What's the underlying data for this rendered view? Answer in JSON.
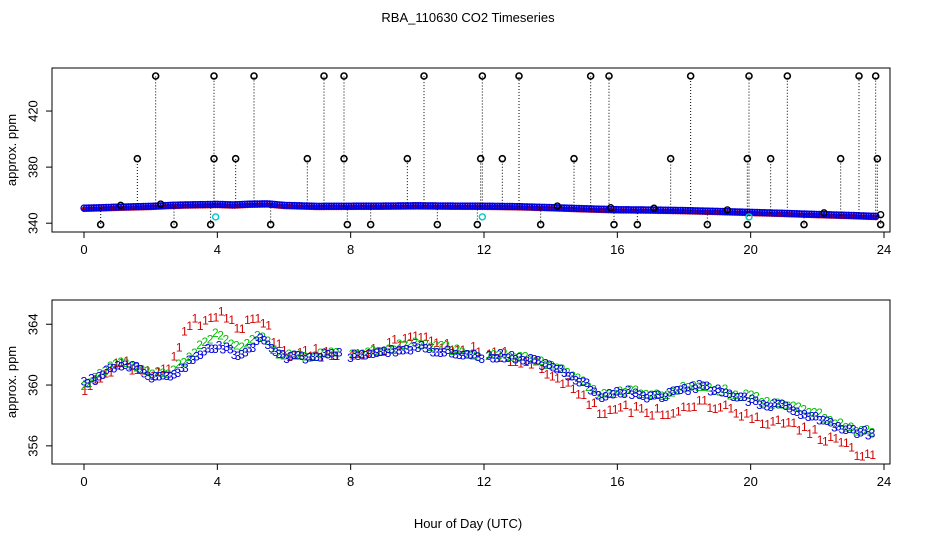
{
  "title": "RBA_110630  CO2 Timeseries",
  "xlabel": "Hour of Day (UTC)",
  "colors": {
    "series_1": "#d00000",
    "series_2": "#00c000",
    "series_3": "#0000e0",
    "outlier": "#000000",
    "cyan_points": "#00c8c8",
    "axis": "#000000"
  },
  "chart_data": [
    {
      "type": "scatter",
      "panel": "top",
      "ylabel": "approx. ppm",
      "xlim": [
        0,
        24
      ],
      "ylim": [
        338,
        445
      ],
      "xticks": [
        0,
        4,
        8,
        12,
        16,
        20,
        24
      ],
      "yticks": [
        340,
        380,
        420
      ],
      "grid": false,
      "baseline": [
        [
          0,
          350.5
        ],
        [
          0.5,
          350.8
        ],
        [
          1,
          351.2
        ],
        [
          1.5,
          351.5
        ],
        [
          2,
          351.8
        ],
        [
          2.5,
          352.4
        ],
        [
          3,
          352.8
        ],
        [
          3.5,
          353.0
        ],
        [
          4,
          353.2
        ],
        [
          4.5,
          352.8
        ],
        [
          5,
          353.4
        ],
        [
          5.5,
          353.6
        ],
        [
          6,
          352.5
        ],
        [
          7,
          351.8
        ],
        [
          8,
          351.9
        ],
        [
          9,
          352.0
        ],
        [
          10,
          352.2
        ],
        [
          11,
          352.0
        ],
        [
          12,
          351.9
        ],
        [
          13,
          351.6
        ],
        [
          14,
          350.9
        ],
        [
          15,
          350.1
        ],
        [
          16,
          349.4
        ],
        [
          17,
          349.2
        ],
        [
          18,
          348.8
        ],
        [
          19,
          348.2
        ],
        [
          20,
          347.5
        ],
        [
          21,
          346.8
        ],
        [
          22,
          346.0
        ],
        [
          23,
          345.3
        ],
        [
          23.8,
          344.6
        ]
      ],
      "outliers_high": [
        2.15,
        3.9,
        5.1,
        7.2,
        7.8,
        10.2,
        11.95,
        13.05,
        15.2,
        15.75,
        18.2,
        19.95,
        21.1,
        23.25,
        23.75
      ],
      "outliers_mid": [
        1.6,
        3.9,
        4.55,
        6.7,
        7.8,
        9.7,
        11.9,
        12.55,
        14.7,
        17.6,
        19.9,
        20.6,
        22.7,
        23.8
      ],
      "outliers_low": [
        0.5,
        2.7,
        3.8,
        5.6,
        7.9,
        8.6,
        10.6,
        11.8,
        13.7,
        15.9,
        16.6,
        18.7,
        19.9,
        21.6,
        23.9
      ],
      "outliers_near": [
        1.1,
        2.3,
        14.2,
        15.8,
        17.1,
        19.3,
        22.2,
        23.9
      ],
      "cyan_points": [
        [
          3.95,
          344.5
        ],
        [
          11.95,
          344.5
        ],
        [
          19.95,
          344.5
        ]
      ],
      "values": {
        "high": 445,
        "mid": 386,
        "low": 339,
        "near_offset": 1.5
      }
    },
    {
      "type": "scatter",
      "panel": "bottom",
      "ylabel": "approx. ppm",
      "xlim": [
        0,
        24
      ],
      "ylim": [
        355.2,
        365.2
      ],
      "xticks": [
        0,
        4,
        8,
        12,
        16,
        20,
        24
      ],
      "yticks": [
        356,
        360,
        364
      ],
      "grid": false,
      "series": [
        {
          "name": "1",
          "marker": "1",
          "offset": [
            [
              0,
              -0.3
            ],
            [
              2.5,
              0.3
            ],
            [
              3,
              2.4
            ],
            [
              4,
              2.0
            ],
            [
              5,
              2.0
            ],
            [
              6,
              0.3
            ],
            [
              8,
              0.2
            ],
            [
              10,
              0.6
            ],
            [
              12,
              0.2
            ],
            [
              14,
              -0.4
            ],
            [
              15,
              -1.0
            ],
            [
              16,
              -1.2
            ],
            [
              18,
              -1.0
            ],
            [
              20,
              -1.1
            ],
            [
              22,
              -1.1
            ],
            [
              23.8,
              -1.4
            ]
          ]
        },
        {
          "name": "2",
          "marker": "2",
          "offset": [
            [
              0,
              0
            ],
            [
              3,
              0.3
            ],
            [
              4,
              0.8
            ],
            [
              5,
              0.4
            ],
            [
              6,
              0.0
            ],
            [
              10,
              0.3
            ],
            [
              12,
              0.1
            ],
            [
              16,
              0
            ],
            [
              20,
              0.2
            ],
            [
              23.8,
              0.1
            ]
          ]
        },
        {
          "name": "3",
          "marker": "3",
          "offset": [
            [
              0,
              0
            ],
            [
              23.8,
              0
            ]
          ]
        }
      ],
      "baseline": [
        [
          0,
          360.1
        ],
        [
          0.25,
          360.3
        ],
        [
          0.5,
          360.6
        ],
        [
          0.75,
          361.0
        ],
        [
          1.0,
          361.2
        ],
        [
          1.25,
          361.3
        ],
        [
          1.5,
          361.1
        ],
        [
          1.75,
          360.9
        ],
        [
          2.0,
          360.6
        ],
        [
          2.25,
          360.5
        ],
        [
          2.5,
          360.6
        ],
        [
          2.75,
          360.8
        ],
        [
          3.0,
          361.2
        ],
        [
          3.25,
          361.7
        ],
        [
          3.5,
          362.0
        ],
        [
          3.75,
          362.3
        ],
        [
          4.0,
          362.6
        ],
        [
          4.25,
          362.4
        ],
        [
          4.5,
          362.0
        ],
        [
          4.75,
          361.9
        ],
        [
          5.0,
          362.4
        ],
        [
          5.25,
          363.0
        ],
        [
          5.5,
          362.6
        ],
        [
          5.75,
          362.2
        ],
        [
          6.0,
          361.9
        ],
        [
          6.5,
          361.8
        ],
        [
          7.0,
          361.9
        ],
        [
          7.5,
          362.0
        ],
        [
          8.0,
          361.9
        ],
        [
          8.5,
          362.0
        ],
        [
          9.0,
          362.1
        ],
        [
          9.5,
          362.3
        ],
        [
          10.0,
          362.5
        ],
        [
          10.5,
          362.3
        ],
        [
          11.0,
          362.2
        ],
        [
          11.5,
          362.0
        ],
        [
          12.0,
          361.8
        ],
        [
          12.5,
          361.9
        ],
        [
          13.0,
          361.8
        ],
        [
          13.5,
          361.6
        ],
        [
          14.0,
          361.2
        ],
        [
          14.5,
          360.7
        ],
        [
          15.0,
          360.1
        ],
        [
          15.5,
          359.3
        ],
        [
          16.0,
          359.6
        ],
        [
          16.5,
          359.5
        ],
        [
          17.0,
          359.2
        ],
        [
          17.5,
          359.3
        ],
        [
          18.0,
          359.7
        ],
        [
          18.5,
          359.9
        ],
        [
          19.0,
          359.6
        ],
        [
          19.5,
          359.2
        ],
        [
          20.0,
          359.0
        ],
        [
          20.5,
          358.7
        ],
        [
          21.0,
          358.6
        ],
        [
          21.5,
          358.2
        ],
        [
          22.0,
          357.9
        ],
        [
          22.5,
          357.4
        ],
        [
          23.0,
          357.0
        ],
        [
          23.5,
          356.8
        ],
        [
          23.8,
          356.6
        ]
      ]
    }
  ]
}
